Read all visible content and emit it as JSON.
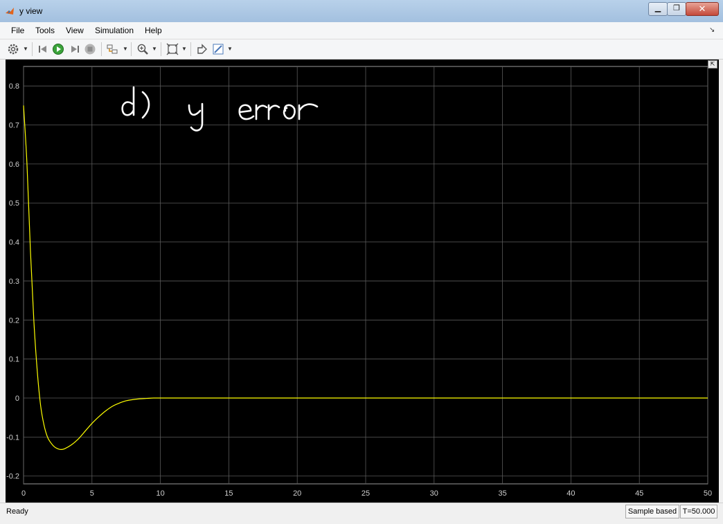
{
  "window": {
    "title": "y view",
    "minimize_label": "▁",
    "maximize_label": "❐",
    "close_label": "✕"
  },
  "menu": [
    "File",
    "Tools",
    "View",
    "Simulation",
    "Help"
  ],
  "toolbar": {
    "icons": [
      "settings-icon",
      "step-back-icon",
      "run-icon",
      "step-forward-icon",
      "stop-icon",
      "highlight-block-icon",
      "zoom-icon",
      "fit-to-view-icon",
      "restore-layout-icon",
      "style-icon"
    ]
  },
  "plot": {
    "annotation": "d)  y  error",
    "background": "#000000",
    "line_color": "#ffff00",
    "grid_color": "#5a5a5a"
  },
  "status": {
    "left": "Ready",
    "mode": "Sample based",
    "time": "T=50.000"
  },
  "chart_data": {
    "type": "line",
    "title": "",
    "xlabel": "",
    "ylabel": "",
    "xlim": [
      0,
      50
    ],
    "ylim": [
      -0.22,
      0.85
    ],
    "xticks": [
      0,
      5,
      10,
      15,
      20,
      25,
      30,
      35,
      40,
      45,
      50
    ],
    "yticks": [
      -0.2,
      -0.1,
      0,
      0.1,
      0.2,
      0.3,
      0.4,
      0.5,
      0.6,
      0.7,
      0.8
    ],
    "ytick_labels": [
      "-0.2",
      "-0.1",
      "0",
      "0.1",
      "0.2",
      "0.3",
      "0.4",
      "0.5",
      "0.6",
      "0.7",
      "0.8"
    ],
    "grid": true,
    "series": [
      {
        "x": [
          0,
          0.25,
          0.5,
          0.75,
          1.0,
          1.25,
          1.5,
          1.75,
          2.0,
          2.25,
          2.5,
          2.75,
          3.0,
          3.5,
          4.0,
          4.5,
          5.0,
          5.5,
          6.0,
          6.5,
          7.0,
          7.5,
          8.0,
          8.5,
          9.0,
          9.5,
          10.0,
          11.0,
          12.0,
          15.0,
          20.0,
          30.0,
          40.0,
          50.0
        ],
        "y": [
          0.75,
          0.6,
          0.38,
          0.2,
          0.07,
          -0.02,
          -0.07,
          -0.1,
          -0.115,
          -0.125,
          -0.13,
          -0.132,
          -0.13,
          -0.12,
          -0.105,
          -0.085,
          -0.065,
          -0.048,
          -0.033,
          -0.021,
          -0.013,
          -0.007,
          -0.004,
          -0.002,
          -0.001,
          0.0,
          0.0,
          0.0,
          0.0,
          0.0,
          0.0,
          0.0,
          0.0,
          0.0
        ]
      }
    ]
  }
}
